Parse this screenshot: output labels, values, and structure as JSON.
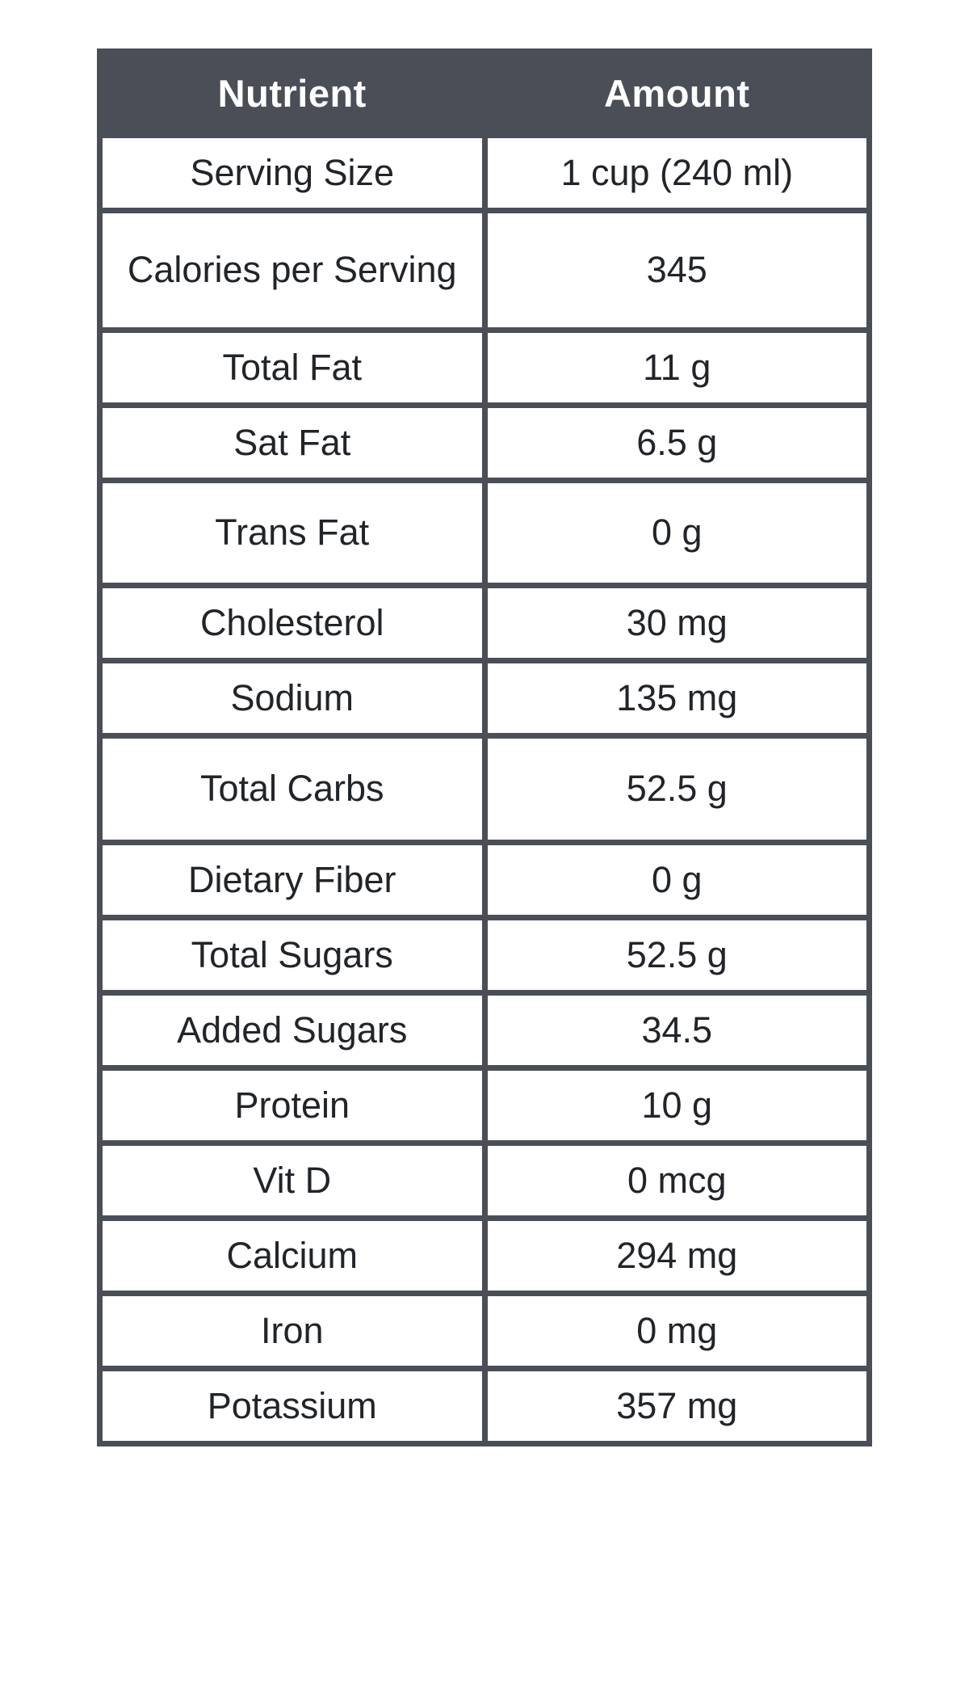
{
  "colors": {
    "header_background": "#4a4e57",
    "border": "#4a4e57",
    "header_text": "#ffffff",
    "body_text": "#212529",
    "page_background": "#ffffff"
  },
  "chart_data": {
    "type": "table",
    "title": "",
    "columns": [
      "Nutrient",
      "Amount"
    ],
    "rows": [
      {
        "nutrient": "Serving Size",
        "amount": "1 cup (240 ml)"
      },
      {
        "nutrient": "Calories per Serving",
        "amount": "345"
      },
      {
        "nutrient": "Total Fat",
        "amount": "11 g"
      },
      {
        "nutrient": "Sat Fat",
        "amount": "6.5 g"
      },
      {
        "nutrient": "Trans Fat",
        "amount": "0 g"
      },
      {
        "nutrient": "Cholesterol",
        "amount": "30 mg"
      },
      {
        "nutrient": "Sodium",
        "amount": "135 mg"
      },
      {
        "nutrient": "Total Carbs",
        "amount": "52.5 g"
      },
      {
        "nutrient": "Dietary Fiber",
        "amount": "0 g"
      },
      {
        "nutrient": "Total Sugars",
        "amount": "52.5 g"
      },
      {
        "nutrient": "Added Sugars",
        "amount": "34.5"
      },
      {
        "nutrient": "Protein",
        "amount": "10 g"
      },
      {
        "nutrient": "Vit D",
        "amount": "0 mcg"
      },
      {
        "nutrient": "Calcium",
        "amount": "294 mg"
      },
      {
        "nutrient": "Iron",
        "amount": "0 mg"
      },
      {
        "nutrient": "Potassium",
        "amount": "357 mg"
      }
    ]
  }
}
